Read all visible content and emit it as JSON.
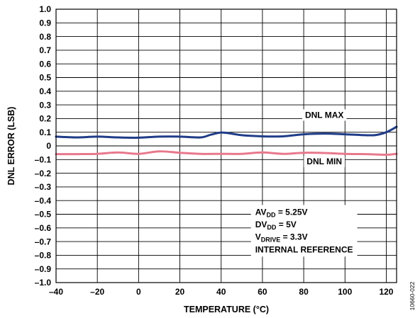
{
  "chart_data": {
    "type": "line",
    "xlabel": "TEMPERATURE (°C)",
    "ylabel": "DNL ERROR (LSB)",
    "xlim": [
      -40,
      125
    ],
    "ylim": [
      -1.0,
      1.0
    ],
    "x_ticks": [
      -40,
      -20,
      0,
      20,
      40,
      60,
      80,
      100,
      120
    ],
    "x_tick_labels": [
      "–40",
      "–20",
      "0",
      "20",
      "40",
      "60",
      "80",
      "100",
      "120"
    ],
    "y_ticks": [
      1.0,
      0.9,
      0.8,
      0.7,
      0.6,
      0.5,
      0.4,
      0.3,
      0.2,
      0.1,
      0,
      -0.1,
      -0.2,
      -0.3,
      -0.4,
      -0.5,
      -0.6,
      -0.7,
      -0.8,
      -0.9,
      -1.0
    ],
    "y_tick_labels": [
      "1.0",
      "0.9",
      "0.8",
      "0.7",
      "0.6",
      "0.5",
      "0.4",
      "0.3",
      "0.2",
      "0.1",
      "0",
      "–0.1",
      "–0.2",
      "–0.3",
      "–0.4",
      "–0.5",
      "–0.6",
      "–0.7",
      "–0.8",
      "–0.9",
      "–1.0"
    ],
    "grid": true,
    "series": [
      {
        "name": "DNL MAX",
        "color": "#1f3c88",
        "x": [
          -40,
          -30,
          -20,
          -10,
          0,
          10,
          20,
          30,
          35,
          40,
          45,
          50,
          60,
          70,
          80,
          90,
          100,
          110,
          115,
          120,
          125
        ],
        "y": [
          0.068,
          0.062,
          0.068,
          0.062,
          0.06,
          0.068,
          0.068,
          0.062,
          0.082,
          0.098,
          0.09,
          0.078,
          0.07,
          0.07,
          0.085,
          0.09,
          0.085,
          0.078,
          0.08,
          0.1,
          0.14
        ]
      },
      {
        "name": "DNL MIN",
        "color": "#e8788c",
        "x": [
          -40,
          -30,
          -20,
          -10,
          0,
          10,
          20,
          30,
          40,
          50,
          60,
          70,
          80,
          90,
          100,
          110,
          120,
          125
        ],
        "y": [
          -0.06,
          -0.06,
          -0.058,
          -0.048,
          -0.058,
          -0.04,
          -0.05,
          -0.058,
          -0.058,
          -0.058,
          -0.048,
          -0.058,
          -0.05,
          -0.052,
          -0.058,
          -0.06,
          -0.065,
          -0.058
        ]
      }
    ],
    "annotations": {
      "dnl_max_label": "DNL MAX",
      "dnl_min_label": "DNL MIN",
      "conditions": [
        {
          "main": "AV",
          "sub": "DD",
          "rest": " = 5.25V"
        },
        {
          "main": "DV",
          "sub": "DD",
          "rest": " = 5V"
        },
        {
          "main": "V",
          "sub": "DRIVE",
          "rest": " = 3.3V"
        },
        {
          "main": "INTERNAL REFERENCE",
          "sub": "",
          "rest": ""
        }
      ]
    }
  },
  "figure_id": "10660-022"
}
